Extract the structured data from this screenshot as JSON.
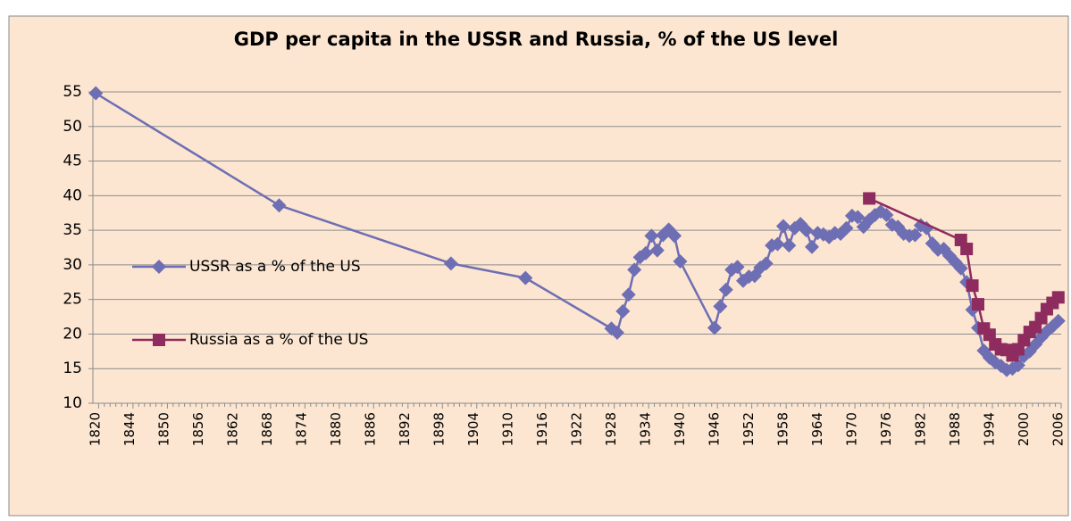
{
  "chart_data": {
    "type": "line",
    "title": "GDP  per capita in the USSR and Russia, % of the US level",
    "categories": [
      "1820",
      null,
      null,
      null,
      null,
      null,
      "1844",
      null,
      null,
      null,
      null,
      null,
      "1850",
      null,
      null,
      null,
      null,
      null,
      "1856",
      null,
      null,
      null,
      null,
      null,
      "1862",
      null,
      null,
      null,
      null,
      null,
      "1868",
      null,
      null,
      null,
      null,
      null,
      "1874",
      null,
      null,
      null,
      null,
      null,
      "1880",
      null,
      null,
      null,
      null,
      null,
      "1886",
      null,
      null,
      null,
      null,
      null,
      "1892",
      null,
      null,
      null,
      null,
      null,
      "1898",
      null,
      null,
      null,
      null,
      null,
      "1904",
      null,
      null,
      null,
      null,
      null,
      "1910",
      null,
      null,
      null,
      null,
      null,
      "1916",
      null,
      null,
      null,
      null,
      null,
      "1922",
      null,
      null,
      null,
      null,
      null,
      "1928",
      null,
      null,
      null,
      null,
      null,
      "1934",
      null,
      null,
      null,
      null,
      null,
      "1940",
      null,
      null,
      null,
      null,
      null,
      "1946",
      null,
      null,
      null,
      null,
      null,
      "1952",
      null,
      null,
      null,
      null,
      null,
      "1958",
      null,
      null,
      null,
      null,
      null,
      "1964",
      null,
      null,
      null,
      null,
      null,
      "1970",
      null,
      null,
      null,
      null,
      null,
      "1976",
      null,
      null,
      null,
      null,
      null,
      "1982",
      null,
      null,
      null,
      null,
      null,
      "1988",
      null,
      null,
      null,
      null,
      null,
      "1994",
      null,
      null,
      null,
      null,
      null,
      "2000",
      null,
      null,
      null,
      null,
      null,
      "2006"
    ],
    "series": [
      {
        "name": "USSR as a % of the US",
        "color": "#6e6eb4",
        "marker": "diamond",
        "values": [
          54.8,
          null,
          null,
          null,
          null,
          null,
          null,
          null,
          null,
          null,
          null,
          null,
          null,
          null,
          null,
          null,
          null,
          null,
          null,
          null,
          null,
          null,
          null,
          null,
          null,
          null,
          null,
          null,
          null,
          null,
          null,
          null,
          38.6,
          null,
          null,
          null,
          null,
          null,
          null,
          null,
          null,
          null,
          null,
          null,
          null,
          null,
          null,
          null,
          null,
          null,
          null,
          null,
          null,
          null,
          null,
          null,
          null,
          null,
          null,
          null,
          null,
          null,
          30.2,
          null,
          null,
          null,
          null,
          null,
          null,
          null,
          null,
          null,
          null,
          null,
          null,
          28.1,
          null,
          null,
          null,
          null,
          null,
          null,
          null,
          null,
          null,
          null,
          null,
          null,
          null,
          null,
          20.8,
          20.2,
          23.3,
          25.7,
          29.3,
          31.1,
          31.7,
          34.2,
          32.1,
          34.3,
          35.1,
          34.2,
          30.5,
          null,
          null,
          null,
          null,
          null,
          20.9,
          24.0,
          26.4,
          29.3,
          29.7,
          27.7,
          28.3,
          28.4,
          29.6,
          30.2,
          32.8,
          33.0,
          35.6,
          32.8,
          35.3,
          35.9,
          35.0,
          32.6,
          34.6,
          34.4,
          34.0,
          34.6,
          34.5,
          35.3,
          37.1,
          36.9,
          35.5,
          36.5,
          37.2,
          37.7,
          37.2,
          35.8,
          35.5,
          34.5,
          34.2,
          34.3,
          35.7,
          35.3,
          33.1,
          32.2,
          32.3,
          31.3,
          30.4,
          29.5,
          27.5,
          23.5,
          20.9,
          17.6,
          16.6,
          15.9,
          15.4,
          14.8,
          15.0,
          15.5,
          16.8,
          17.5,
          18.5,
          19.5,
          20.4,
          21.1,
          21.9
        ]
      },
      {
        "name": "Russia as a % of the US",
        "color": "#8e2b5f",
        "marker": "square",
        "values": [
          null,
          null,
          null,
          null,
          null,
          null,
          null,
          null,
          null,
          null,
          null,
          null,
          null,
          null,
          null,
          null,
          null,
          null,
          null,
          null,
          null,
          null,
          null,
          null,
          null,
          null,
          null,
          null,
          null,
          null,
          null,
          null,
          null,
          null,
          null,
          null,
          null,
          null,
          null,
          null,
          null,
          null,
          null,
          null,
          null,
          null,
          null,
          null,
          null,
          null,
          null,
          null,
          null,
          null,
          null,
          null,
          null,
          null,
          null,
          null,
          null,
          null,
          null,
          null,
          null,
          null,
          null,
          null,
          null,
          null,
          null,
          null,
          null,
          null,
          null,
          null,
          null,
          null,
          null,
          null,
          null,
          null,
          null,
          null,
          null,
          null,
          null,
          null,
          null,
          null,
          null,
          null,
          null,
          null,
          null,
          null,
          null,
          null,
          null,
          null,
          null,
          null,
          null,
          null,
          null,
          null,
          null,
          null,
          null,
          null,
          null,
          null,
          null,
          null,
          null,
          null,
          null,
          null,
          null,
          null,
          null,
          null,
          null,
          null,
          null,
          null,
          null,
          null,
          null,
          null,
          null,
          null,
          null,
          null,
          null,
          39.6,
          null,
          null,
          null,
          null,
          null,
          null,
          null,
          null,
          null,
          null,
          null,
          null,
          null,
          null,
          null,
          33.6,
          32.3,
          27.0,
          24.3,
          20.8,
          19.9,
          18.5,
          17.8,
          17.7,
          16.9,
          17.8,
          19.1,
          20.3,
          21.0,
          22.3,
          23.6,
          24.5,
          25.3
        ]
      }
    ],
    "ylim": [
      10,
      55
    ],
    "yticks": [
      10,
      15,
      20,
      25,
      30,
      35,
      40,
      45,
      50,
      55
    ],
    "grid": true,
    "legend": "left"
  }
}
